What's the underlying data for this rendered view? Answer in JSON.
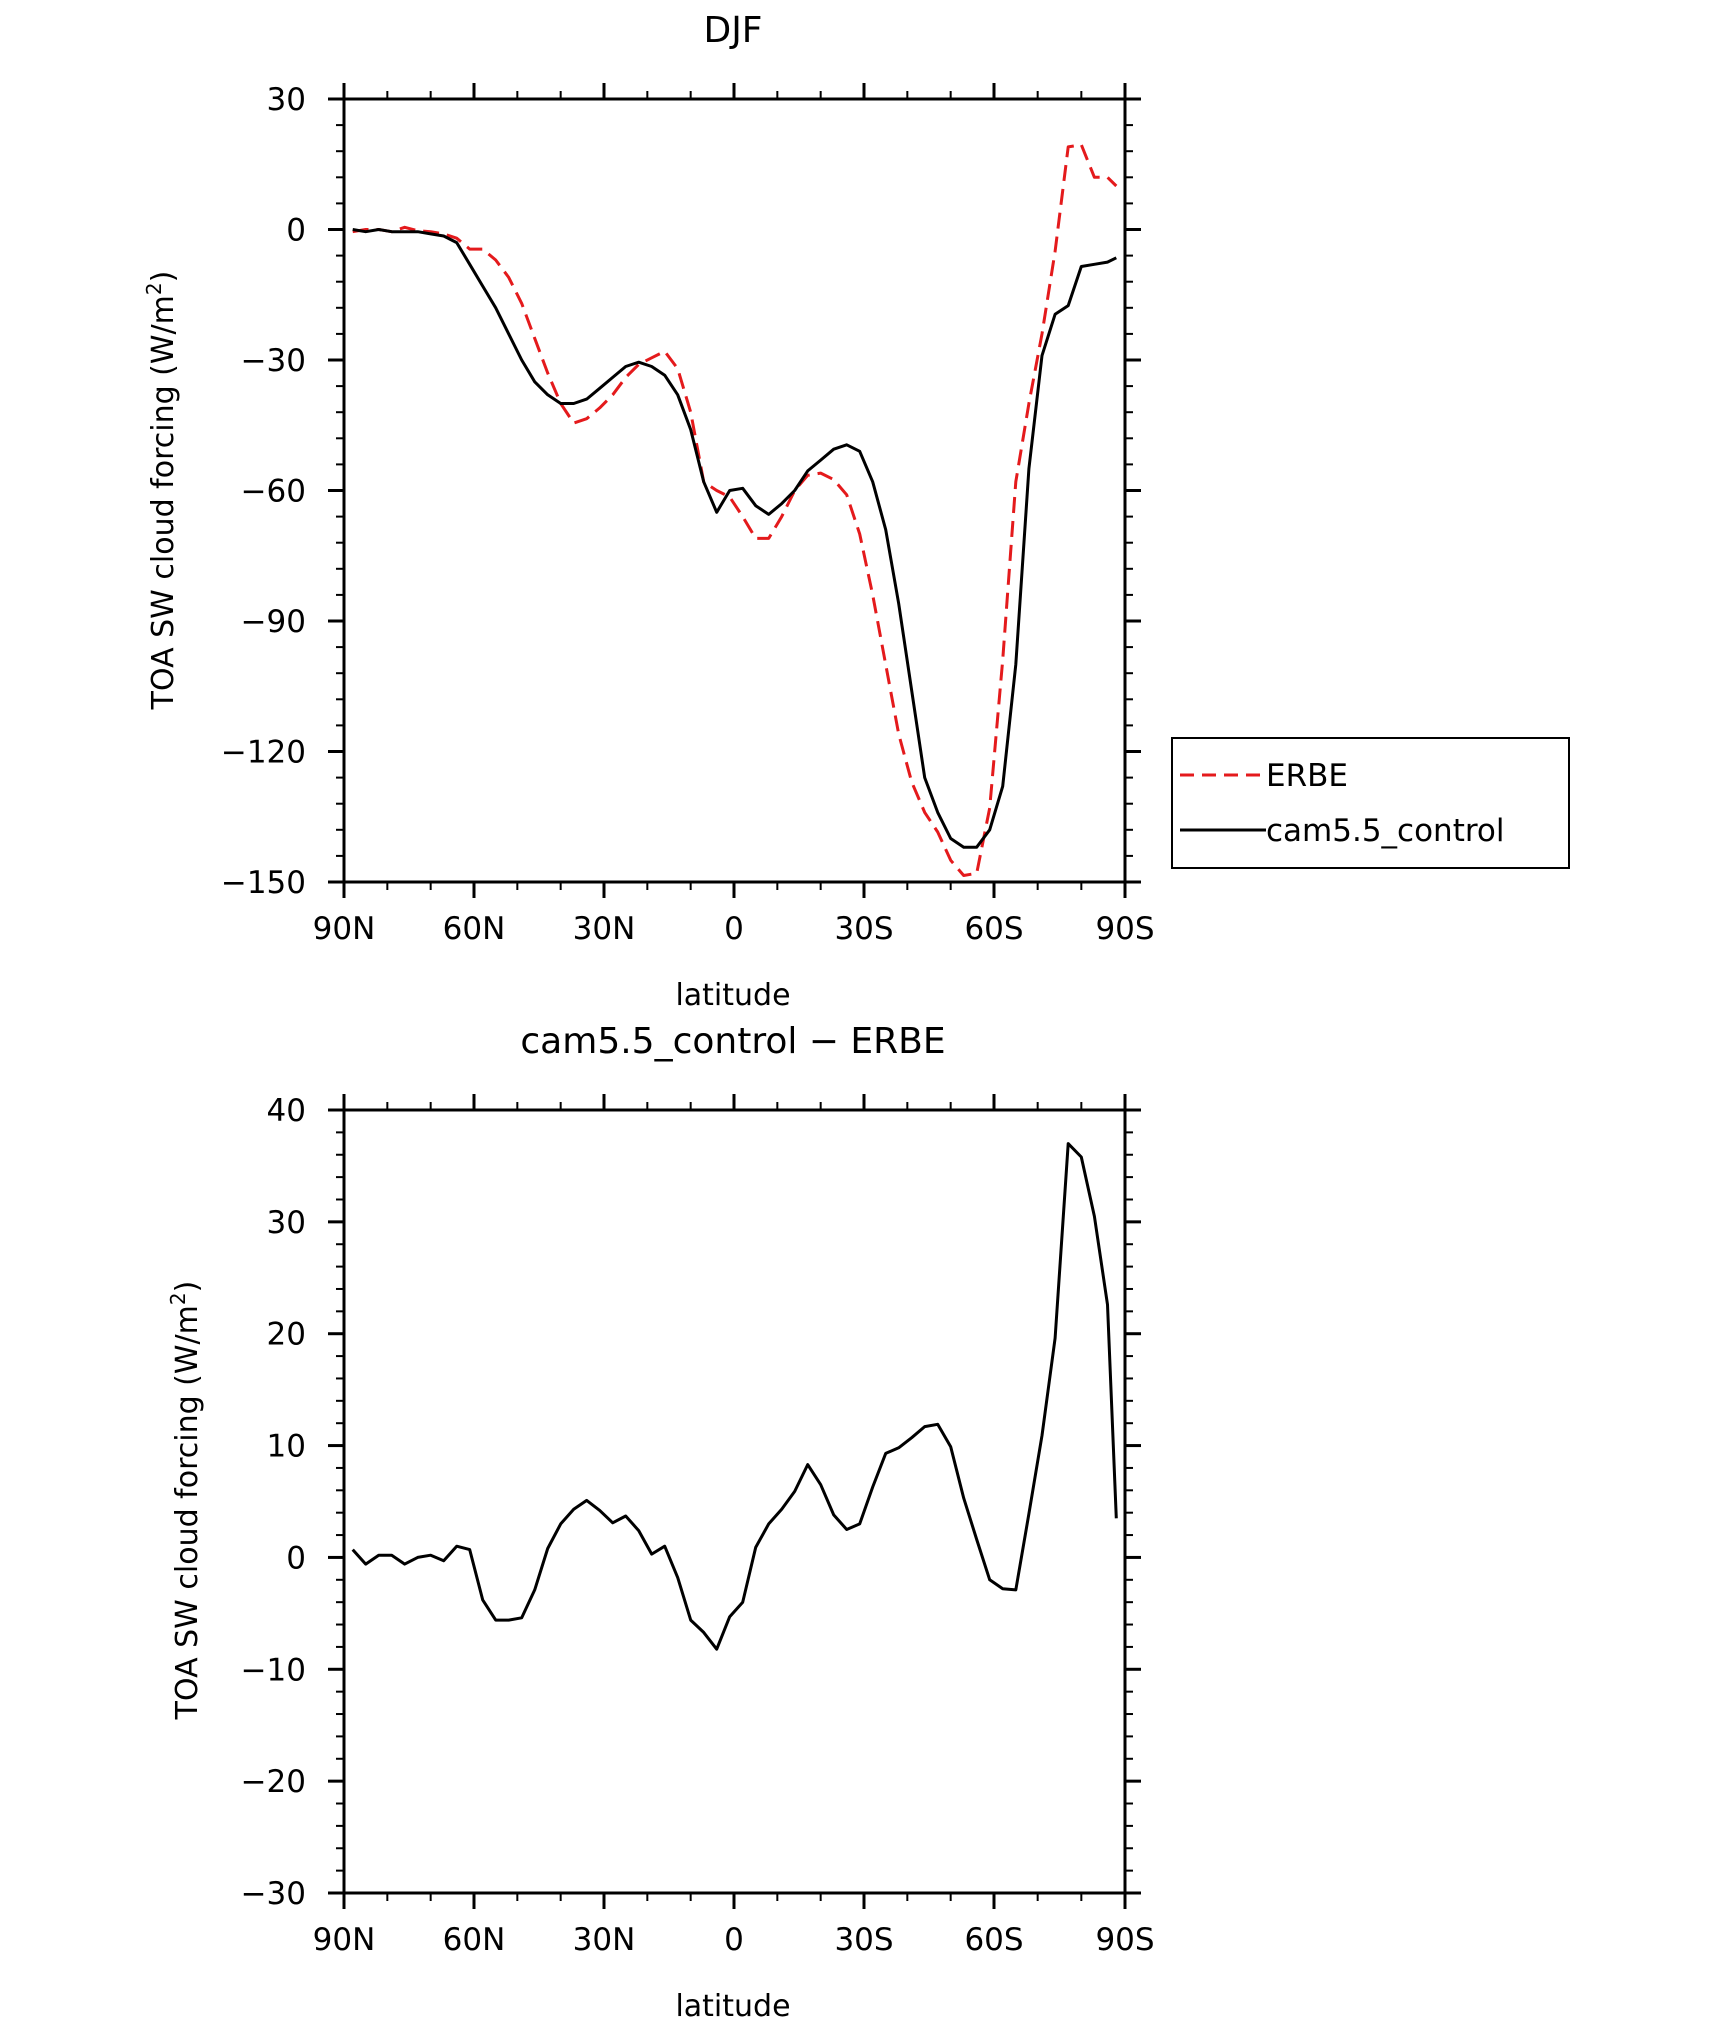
{
  "chart_data": [
    {
      "type": "line",
      "title": "DJF",
      "xlabel": "latitude",
      "ylabel": "TOA SW cloud forcing (W/m²)",
      "ylabel_main": "TOA SW cloud forcing (W/m",
      "ylabel_sup": "2",
      "ylabel_close": ")",
      "xlim": [
        -88,
        88
      ],
      "ylim": [
        -150,
        30
      ],
      "x_ticks": [
        -90,
        -60,
        -30,
        0,
        30,
        60,
        90
      ],
      "x_tick_labels": [
        "90N",
        "60N",
        "30N",
        "0",
        "30S",
        "60S",
        "90S"
      ],
      "y_ticks": [
        30,
        0,
        -30,
        -60,
        -90,
        -120,
        -150
      ],
      "y_tick_labels": [
        "30",
        "0",
        "−30",
        "−60",
        "−90",
        "−120",
        "−150"
      ],
      "legend": {
        "position": "right",
        "entries": [
          "ERBE",
          "cam5.5_control"
        ]
      },
      "series": [
        {
          "name": "ERBE",
          "color": "#e41a1c",
          "dash": true,
          "x": [
            -88,
            -85,
            -82,
            -79,
            -76,
            -73,
            -70,
            -67,
            -64,
            -61,
            -58,
            -55,
            -52,
            -49,
            -46,
            -43,
            -40,
            -37,
            -34,
            -31,
            -28,
            -25,
            -22,
            -19,
            -16,
            -13,
            -10,
            -7,
            -4,
            -1,
            2,
            5,
            8,
            11,
            14,
            17,
            20,
            23,
            26,
            29,
            32,
            35,
            38,
            41,
            44,
            47,
            50,
            53,
            56,
            59,
            62,
            65,
            68,
            71,
            74,
            77,
            80,
            83,
            86,
            88
          ],
          "y": [
            -0.5,
            0,
            0,
            -0.5,
            0.5,
            -0.3,
            -0.5,
            -1,
            -2,
            -4.5,
            -4.5,
            -7,
            -11,
            -17,
            -25,
            -33,
            -40,
            -44.5,
            -43.5,
            -41,
            -38,
            -34,
            -31,
            -29.5,
            -28,
            -32,
            -42,
            -58,
            -60,
            -61.5,
            -66,
            -71,
            -71,
            -66,
            -60,
            -56.5,
            -56,
            -57.5,
            -61,
            -70,
            -84,
            -100,
            -116,
            -127,
            -134,
            -138.5,
            -145,
            -148.5,
            -148,
            -133,
            -99,
            -58,
            -40,
            -24,
            -5,
            19,
            19.5,
            12,
            12,
            10
          ]
        },
        {
          "name": "cam5.5_control",
          "color": "#000000",
          "dash": false,
          "x": [
            -88,
            -85,
            -82,
            -79,
            -76,
            -73,
            -70,
            -67,
            -64,
            -61,
            -58,
            -55,
            -52,
            -49,
            -46,
            -43,
            -40,
            -37,
            -34,
            -31,
            -28,
            -25,
            -22,
            -19,
            -16,
            -13,
            -10,
            -7,
            -4,
            -1,
            2,
            5,
            8,
            11,
            14,
            17,
            20,
            23,
            26,
            29,
            32,
            35,
            38,
            41,
            44,
            47,
            50,
            53,
            56,
            59,
            62,
            65,
            68,
            71,
            74,
            77,
            80,
            83,
            86,
            88
          ],
          "y": [
            0,
            -0.5,
            0,
            -0.5,
            -0.5,
            -0.5,
            -1,
            -1.5,
            -3,
            -8,
            -13,
            -18,
            -24,
            -30,
            -35,
            -38,
            -40,
            -40,
            -39,
            -36.5,
            -34,
            -31.5,
            -30.5,
            -31.5,
            -33.5,
            -38,
            -46,
            -58,
            -65,
            -60,
            -59.5,
            -63.5,
            -65.5,
            -63,
            -60,
            -55.5,
            -53,
            -50.5,
            -49.5,
            -51,
            -58,
            -69,
            -86,
            -106,
            -126,
            -134,
            -140,
            -142,
            -142,
            -138,
            -128,
            -100,
            -55,
            -29,
            -19.5,
            -17.5,
            -8.5,
            -8,
            -7.5,
            -6.5
          ]
        }
      ]
    },
    {
      "type": "line",
      "title": "cam5.5_control − ERBE",
      "xlabel": "latitude",
      "ylabel": "TOA SW cloud forcing (W/m²)",
      "ylabel_main": "TOA SW cloud forcing (W/m",
      "ylabel_sup": "2",
      "ylabel_close": ")",
      "xlim": [
        -88,
        88
      ],
      "ylim": [
        -30,
        40
      ],
      "x_ticks": [
        -90,
        -60,
        -30,
        0,
        30,
        60,
        90
      ],
      "x_tick_labels": [
        "90N",
        "60N",
        "30N",
        "0",
        "30S",
        "60S",
        "90S"
      ],
      "y_ticks": [
        40,
        30,
        20,
        10,
        0,
        -10,
        -20,
        -30
      ],
      "y_tick_labels": [
        "40",
        "30",
        "20",
        "10",
        "0",
        "−10",
        "−20",
        "−30"
      ],
      "series": [
        {
          "color": "#000000",
          "dash": false,
          "x": [
            -88,
            -85,
            -82,
            -79,
            -76,
            -73,
            -70,
            -67,
            -64,
            -61,
            -58,
            -55,
            -52,
            -49,
            -46,
            -43,
            -40,
            -37,
            -34,
            -31,
            -28,
            -25,
            -22,
            -19,
            -16,
            -13,
            -10,
            -7,
            -4,
            -1,
            2,
            5,
            8,
            11,
            14,
            17,
            20,
            23,
            26,
            29,
            32,
            35,
            38,
            41,
            44,
            47,
            50,
            53,
            56,
            59,
            62,
            65,
            68,
            71,
            74,
            77,
            80,
            83,
            86,
            88
          ],
          "y": [
            0.7,
            -0.6,
            0.2,
            0.2,
            -0.6,
            0,
            0.2,
            -0.3,
            1,
            0.7,
            -3.8,
            -5.6,
            -5.6,
            -5.4,
            -2.9,
            0.8,
            3,
            4.3,
            5.1,
            4.2,
            3.1,
            3.7,
            2.4,
            0.3,
            1,
            -1.8,
            -5.6,
            -6.7,
            -8.2,
            -5.3,
            -4,
            0.9,
            3,
            4.3,
            5.9,
            8.3,
            6.5,
            3.8,
            2.5,
            3,
            6.3,
            9.3,
            9.8,
            10.7,
            11.7,
            11.9,
            9.9,
            5.3,
            1.6,
            -2,
            -2.8,
            -2.9,
            3.9,
            10.9,
            19.6,
            37,
            35.8,
            30.5,
            22.6,
            3.5
          ]
        }
      ]
    }
  ]
}
